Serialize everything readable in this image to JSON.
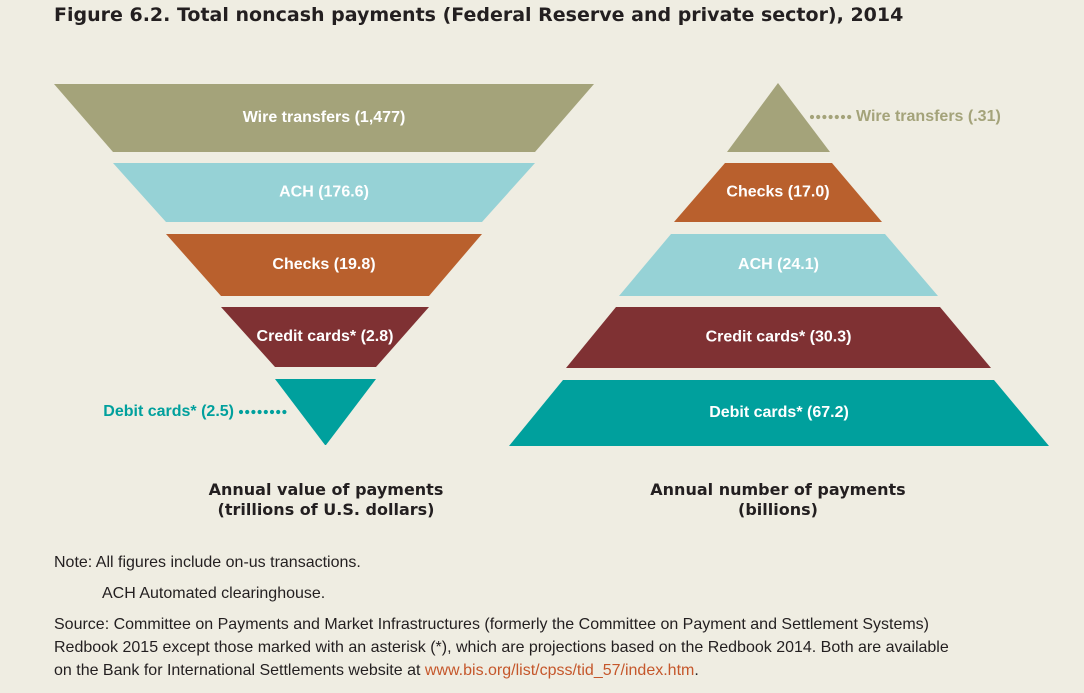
{
  "title": "Figure 6.2. Total noncash payments (Federal Reserve and private sector), 2014",
  "colors": {
    "wire": "#a4a37a",
    "ach": "#96d2d6",
    "checks": "#b9602d",
    "credit": "#7f3133",
    "debit": "#00a09d",
    "background": "#efede2",
    "link": "#c5572b"
  },
  "chart_data": [
    {
      "type": "funnel",
      "xlabel": "Annual value of payments",
      "xlabel_unit": "(trillions of U.S. dollars)",
      "categories": [
        "Wire transfers",
        "ACH",
        "Checks",
        "Credit cards*",
        "Debit cards*"
      ],
      "values": [
        1477,
        176.6,
        19.8,
        2.8,
        2.5
      ],
      "labels": [
        "Wire transfers (1,477)",
        "ACH (176.6)",
        "Checks (19.8)",
        "Credit cards* (2.8)",
        "Debit cards* (2.5)"
      ]
    },
    {
      "type": "pyramid",
      "xlabel": "Annual number of payments",
      "xlabel_unit": "(billions)",
      "categories": [
        "Wire transfers",
        "Checks",
        "ACH",
        "Credit cards*",
        "Debit cards*"
      ],
      "values": [
        0.31,
        17.0,
        24.1,
        30.3,
        67.2
      ],
      "labels": [
        "Wire transfers (.31)",
        "Checks (17.0)",
        "ACH (24.1)",
        "Credit cards* (30.3)",
        "Debit cards* (67.2)"
      ]
    }
  ],
  "notes": {
    "note_line": "Note: All figures include on-us transactions.",
    "ach_line": "ACH Automated clearinghouse.",
    "source_line1": "Source: Committee on Payments and Market Infrastructures (formerly the Committee on Payment and Settlement Systems)",
    "source_line2": "Redbook 2015 except those marked with an asterisk (*), which are projections based on the Redbook 2014. Both are available",
    "source_line3_prefix": "on the Bank for International Settlements website at ",
    "source_link": "www.bis.org/list/cpss/tid_57/index.htm",
    "source_line3_suffix": "."
  }
}
